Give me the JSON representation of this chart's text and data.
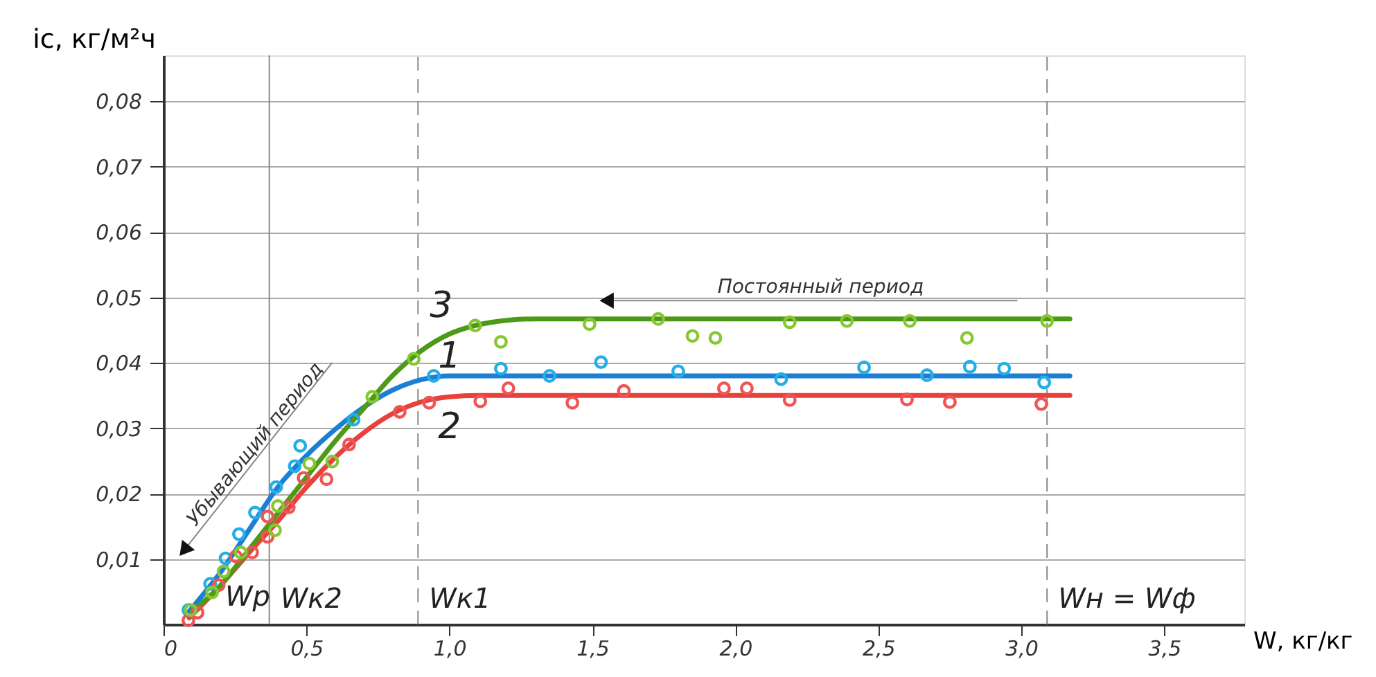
{
  "chart_data": {
    "type": "line",
    "xlabel": "W, кг/кг",
    "ylabel": "iс, кг/м²ч",
    "xlim": [
      0,
      3.78
    ],
    "ylim": [
      0,
      0.087
    ],
    "xticks": [
      {
        "value": 0,
        "label": "0"
      },
      {
        "value": 0.5,
        "label": "0,5"
      },
      {
        "value": 1.0,
        "label": "1,0"
      },
      {
        "value": 1.5,
        "label": "1,5"
      },
      {
        "value": 2.0,
        "label": "2,0"
      },
      {
        "value": 2.5,
        "label": "2,5"
      },
      {
        "value": 3.0,
        "label": "3,0"
      },
      {
        "value": 3.5,
        "label": "3,5"
      }
    ],
    "yticks": [
      {
        "value": 0.01,
        "label": "0,01"
      },
      {
        "value": 0.02,
        "label": "0,02"
      },
      {
        "value": 0.03,
        "label": "0,03"
      },
      {
        "value": 0.04,
        "label": "0,04"
      },
      {
        "value": 0.05,
        "label": "0,05"
      },
      {
        "value": 0.06,
        "label": "0,06"
      },
      {
        "value": 0.07,
        "label": "0,07"
      },
      {
        "value": 0.08,
        "label": "0,08"
      }
    ],
    "grid": "y",
    "line_style": "solid",
    "series": [
      {
        "name": "1",
        "color": "#1b7fd6",
        "marker": "none",
        "x": [
          0.09,
          0.2,
          0.3,
          0.4,
          0.5,
          0.6,
          0.7,
          0.8,
          0.9,
          1.0,
          3.17
        ],
        "values": [
          0.002,
          0.008,
          0.0145,
          0.021,
          0.0258,
          0.0298,
          0.0332,
          0.0358,
          0.0374,
          0.038,
          0.038
        ]
      },
      {
        "name": "2",
        "color": "#e8413c",
        "marker": "none",
        "x": [
          0.09,
          0.2,
          0.3,
          0.4,
          0.5,
          0.6,
          0.7,
          0.8,
          0.9,
          1.0,
          1.1,
          3.17
        ],
        "values": [
          0.001,
          0.006,
          0.011,
          0.0158,
          0.021,
          0.0255,
          0.0293,
          0.0322,
          0.034,
          0.0348,
          0.035,
          0.035
        ]
      },
      {
        "name": "3",
        "color": "#4e9a18",
        "marker": "none",
        "x": [
          0.1,
          0.2,
          0.3,
          0.4,
          0.5,
          0.6,
          0.7,
          0.8,
          0.9,
          1.0,
          1.1,
          1.2,
          1.3,
          3.17
        ],
        "values": [
          0.002,
          0.006,
          0.0115,
          0.017,
          0.0225,
          0.028,
          0.033,
          0.038,
          0.0418,
          0.0444,
          0.0458,
          0.0465,
          0.0467,
          0.0467
        ]
      },
      {
        "type": "scatter",
        "color": "#25aee6",
        "marker": "circle",
        "x": [
          0.087,
          0.163,
          0.217,
          0.264,
          0.32,
          0.394,
          0.459,
          0.478,
          0.665,
          0.945,
          1.18,
          1.35,
          1.53,
          1.8,
          2.16,
          2.45,
          2.67,
          2.82,
          2.94,
          3.08
        ],
        "values": [
          0.0022,
          0.0062,
          0.0101,
          0.0138,
          0.0171,
          0.021,
          0.0242,
          0.0273,
          0.0313,
          0.038,
          0.0391,
          0.038,
          0.0401,
          0.0387,
          0.0375,
          0.0393,
          0.0381,
          0.0394,
          0.0391,
          0.037
        ]
      },
      {
        "type": "scatter",
        "color": "#ee5555",
        "marker": "circle",
        "x": [
          0.087,
          0.119,
          0.193,
          0.253,
          0.31,
          0.364,
          0.364,
          0.438,
          0.49,
          0.57,
          0.649,
          0.826,
          0.929,
          1.108,
          1.206,
          1.43,
          1.61,
          1.96,
          2.04,
          2.19,
          2.6,
          2.75,
          3.07
        ],
        "values": [
          0.0006,
          0.0018,
          0.006,
          0.0104,
          0.011,
          0.0134,
          0.0165,
          0.0179,
          0.0224,
          0.0222,
          0.0275,
          0.0325,
          0.0339,
          0.0341,
          0.0361,
          0.0339,
          0.0357,
          0.0361,
          0.0361,
          0.0343,
          0.0344,
          0.034,
          0.0337
        ]
      },
      {
        "type": "scatter",
        "color": "#86c832",
        "marker": "circle",
        "x": [
          0.095,
          0.17,
          0.21,
          0.27,
          0.39,
          0.4,
          0.51,
          0.59,
          0.73,
          0.875,
          1.09,
          1.18,
          1.49,
          1.73,
          1.85,
          1.93,
          2.19,
          2.39,
          2.61,
          2.81,
          3.09
        ],
        "values": [
          0.0022,
          0.0049,
          0.0081,
          0.011,
          0.0144,
          0.0181,
          0.0246,
          0.0249,
          0.0348,
          0.0406,
          0.0457,
          0.0432,
          0.0459,
          0.0467,
          0.0441,
          0.0438,
          0.0462,
          0.0464,
          0.0464,
          0.0438,
          0.0464
        ]
      }
    ],
    "ref_lines": [
      {
        "axis": "x",
        "value": 0.37,
        "label": "Wк2",
        "line_style": "solid",
        "color": "#888888"
      },
      {
        "axis": "x",
        "value": 0.89,
        "label": "Wк1",
        "line_style": "dashed",
        "color": "#888888"
      },
      {
        "axis": "x",
        "value": 3.09,
        "label": "Wн = Wф",
        "line_style": "dashed",
        "color": "#888888"
      }
    ],
    "annotations": [
      "Постоянный период",
      "Убывающий период",
      "Wр"
    ]
  }
}
